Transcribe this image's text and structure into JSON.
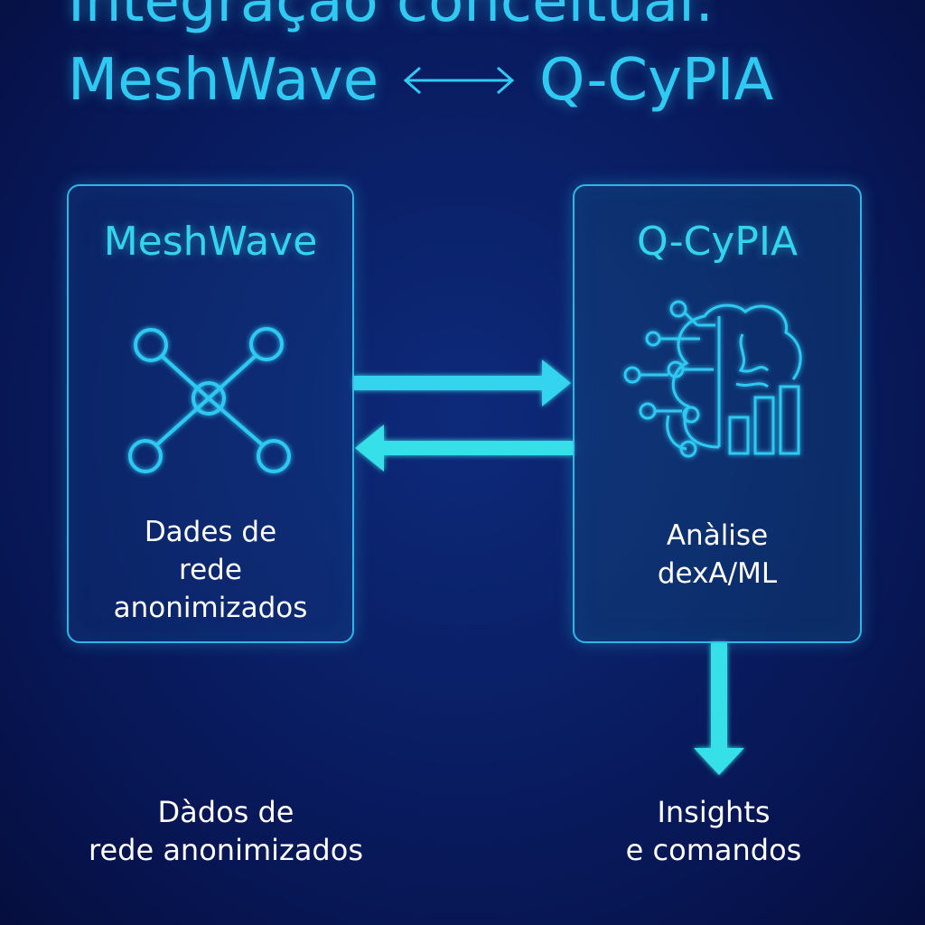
{
  "title": {
    "line1": "Integração conceitual:",
    "left": "MeshWave",
    "right": "Q-CyPIA",
    "arrow_icon": "double-arrow-icon"
  },
  "left_panel": {
    "title": "MeshWave",
    "icon": "network-hub-icon",
    "text_lines": [
      "Dades de",
      "rede",
      "anonimizados"
    ]
  },
  "right_panel": {
    "title": "Q-CyPIA",
    "icon": "ai-brain-chart-icon",
    "text_lines": [
      "Anàlise",
      "dexA/ML"
    ]
  },
  "captions": {
    "left_lines": [
      "Dàdos de",
      "rede anonimizados"
    ],
    "right_lines": [
      "Insights",
      "e comandos"
    ]
  },
  "colors": {
    "background": "#0a1f66",
    "accent": "#2fc9f2",
    "arrow": "#35e0e8",
    "text": "#ffffff"
  }
}
